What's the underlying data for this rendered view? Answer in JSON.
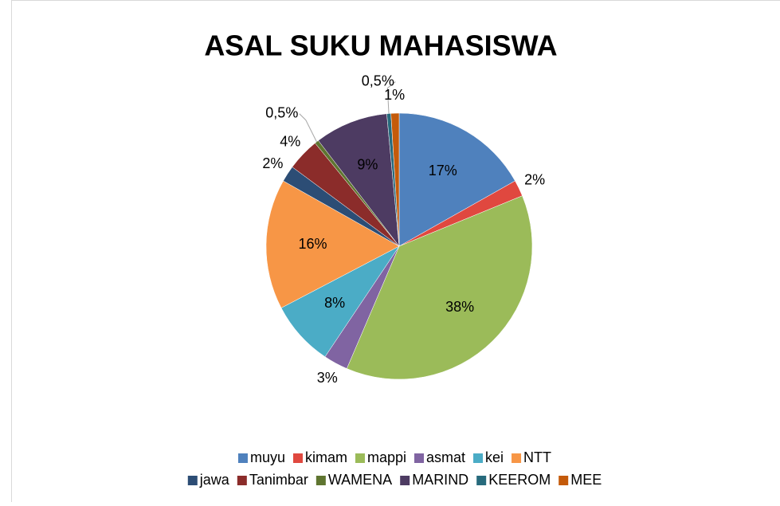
{
  "chart_data": {
    "type": "pie",
    "title": "ASAL SUKU MAHASISWA",
    "categories": [
      "muyu",
      "kimam",
      "mappi",
      "asmat",
      "kei",
      "NTT",
      "jawa",
      "Tanimbar",
      "WAMENA",
      "MARIND",
      "KEEROM",
      "MEE"
    ],
    "values": [
      17,
      2,
      38,
      3,
      8,
      16,
      2,
      4,
      0.5,
      9,
      0.5,
      1
    ],
    "value_labels": [
      "17%",
      "2%",
      "38%",
      "3%",
      "8%",
      "16%",
      "2%",
      "4%",
      "0,5%",
      "9%",
      "0,5%",
      "1%"
    ],
    "colors": [
      "#4f81bd",
      "#e0483f",
      "#9bbb59",
      "#8064a2",
      "#4bacc6",
      "#f79646",
      "#2c4d75",
      "#8b2c2a",
      "#5f7530",
      "#4d3b62",
      "#276a7c",
      "#c45a0a"
    ],
    "legend": "bottom"
  }
}
